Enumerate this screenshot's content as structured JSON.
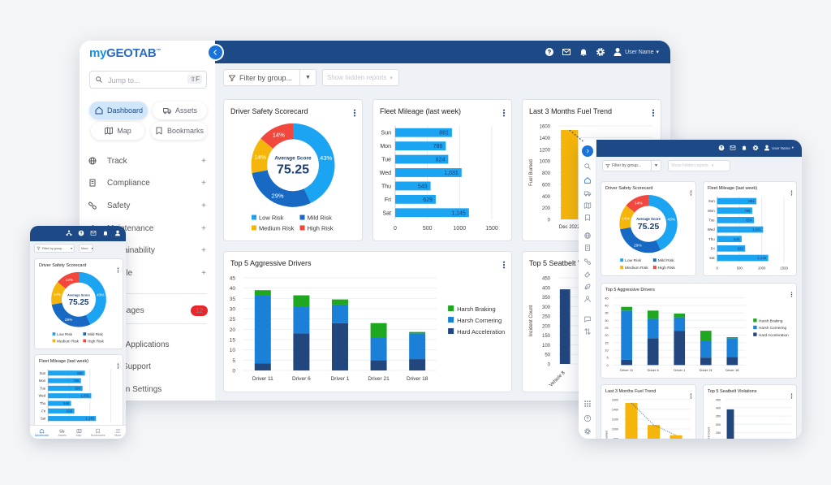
{
  "colors": {
    "header_navy": "#1d4a86",
    "accent_blue": "#1a73d9",
    "badge_red": "#e8262b",
    "active_pill": "#cfe6fb"
  },
  "desktop": {
    "logo": {
      "my": "my",
      "brand": "GEOTAB",
      "tm": "™"
    },
    "search": {
      "placeholder": "Jump to...",
      "shortcut": "⇧F"
    },
    "quick_nav": [
      {
        "label": "Dashboard",
        "icon": "home-icon",
        "active": true
      },
      {
        "label": "Assets",
        "icon": "truck-icon"
      },
      {
        "label": "Map",
        "icon": "map-icon"
      },
      {
        "label": "Bookmarks",
        "icon": "bookmark-icon"
      }
    ],
    "menu": [
      {
        "label": "Track",
        "icon": "globe-icon"
      },
      {
        "label": "Compliance",
        "icon": "document-icon"
      },
      {
        "label": "Safety",
        "icon": "link-icon"
      },
      {
        "label": "Maintenance",
        "icon": "wrench-icon"
      },
      {
        "label": "Sustainability",
        "icon": "leaf-icon"
      },
      {
        "label": "People",
        "icon": "user-icon"
      }
    ],
    "messages": {
      "label": "Messages",
      "badge": "12"
    },
    "links": [
      {
        "label": "Web Applications"
      },
      {
        "label": "Get Support"
      },
      {
        "label": "Admin Settings"
      }
    ],
    "header": {
      "user_name": "User Name"
    },
    "filter": {
      "placeholder": "Filter by group...",
      "hidden_reports": "Show hidden reports"
    }
  },
  "tablet": {
    "header": {
      "user_name": "User Name"
    },
    "filter": {
      "placeholder": "Filter by group...",
      "hidden_reports": "Show hidden reports"
    }
  },
  "phone": {
    "filter": {
      "placeholder": "Filter by group...",
      "more": "More"
    },
    "bottom_nav": [
      {
        "label": "Dashboard"
      },
      {
        "label": "Assets"
      },
      {
        "label": "Map"
      },
      {
        "label": "Bookmarks"
      },
      {
        "label": "More"
      }
    ]
  },
  "chart_data": [
    {
      "type": "pie",
      "title": "Driver Safety Scorecard",
      "center_label": "Average Score",
      "center_value": "75.25",
      "legend": "bottom",
      "slices": [
        {
          "label": "Low Risk",
          "value": 43,
          "color": "#1ba4f2"
        },
        {
          "label": "Mild Risk",
          "value": 29,
          "color": "#1769c4"
        },
        {
          "label": "Medium Risk",
          "value": 14,
          "color": "#f5b50a"
        },
        {
          "label": "High Risk",
          "value": 14,
          "color": "#f2473d"
        }
      ]
    },
    {
      "type": "bar",
      "orientation": "horizontal",
      "title": "Fleet Mileage (last week)",
      "categories": [
        "Sun",
        "Mon",
        "Tue",
        "Wed",
        "Thu",
        "Fri",
        "Sat"
      ],
      "values": [
        881,
        786,
        824,
        1031,
        549,
        629,
        1145
      ],
      "xlim": [
        0,
        1500
      ],
      "xticks": [
        0,
        500,
        1000,
        1500
      ],
      "color": "#1ba4f2",
      "grid": true
    },
    {
      "type": "bar",
      "title": "Last 3 Months Fuel Trend",
      "ylabel": "Fuel Burned",
      "categories": [
        "Dec 2022",
        "",
        ""
      ],
      "values": [
        1530,
        1080,
        870
      ],
      "ylim": [
        0,
        1600
      ],
      "ystep": 200,
      "trendline": true,
      "color": "#f5b50a",
      "grid": true
    },
    {
      "type": "bar",
      "stacked": true,
      "title": "Top 5 Aggressive Drivers",
      "legend": "right",
      "grid": true,
      "categories": [
        "Driver 11",
        "Driver 6",
        "Driver 1",
        "Driver 21",
        "Driver 18"
      ],
      "ylim": [
        0,
        45
      ],
      "ystep": 5,
      "series": [
        {
          "name": "Hard Acceleration",
          "values": [
            3.5,
            18,
            23,
            5,
            5.5
          ],
          "color": "#22467e"
        },
        {
          "name": "Harsh Cornering",
          "values": [
            33,
            13,
            9,
            11,
            12.5
          ],
          "color": "#1a80d8"
        },
        {
          "name": "Harsh Braking",
          "values": [
            2.5,
            5.5,
            2.5,
            7,
            0.7
          ],
          "color": "#1fa71f"
        }
      ]
    },
    {
      "type": "bar",
      "title": "Top 5 Seatbelt Violations",
      "ylabel": "Incident Count",
      "categories": [
        "Vehicle 8"
      ],
      "values": [
        390
      ],
      "ylim": [
        0,
        450
      ],
      "ystep": 50,
      "color": "#22467e",
      "grid": true,
      "rotate_labels": true
    }
  ]
}
